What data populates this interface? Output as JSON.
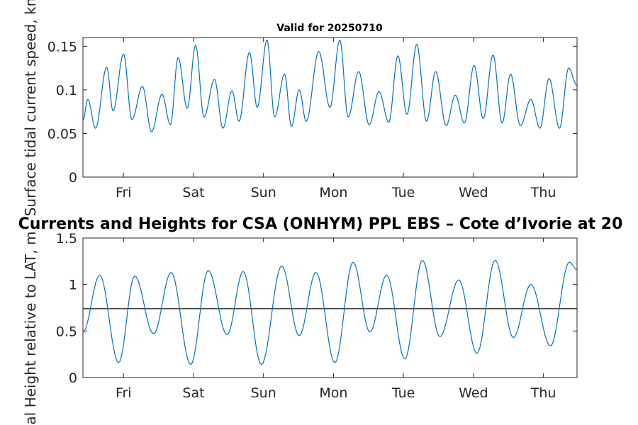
{
  "top_title": "Valid for 20250710",
  "main_title": "Currents and Heights for CSA (ONHYM) PPL EBS  – Cote d’Ivorie at 20",
  "colors": {
    "series": "#0072BD",
    "reference_line": "#000000",
    "axes": "#262626",
    "background": "#ffffff"
  },
  "chart_data": [
    {
      "type": "line",
      "ylabel": "Surface tidal current speed, kn",
      "xlabel": "",
      "day_labels": [
        "Fri",
        "Sat",
        "Sun",
        "Mon",
        "Tue",
        "Wed",
        "Thu"
      ],
      "xlim": [
        0,
        7.06
      ],
      "day_tick_positions": [
        0.58,
        1.58,
        2.58,
        3.58,
        4.58,
        5.58,
        6.58
      ],
      "ylim": [
        0,
        0.16
      ],
      "yticks": [
        0,
        0.05,
        0.1,
        0.15
      ],
      "ytick_labels": [
        "0",
        "0.05",
        "0.1",
        "0.15"
      ],
      "grid": false,
      "series": [
        {
          "x": [
            0.0,
            0.07,
            0.18,
            0.34,
            0.43,
            0.58,
            0.7,
            0.85,
            0.98,
            1.13,
            1.25,
            1.36,
            1.49,
            1.61,
            1.73,
            1.88,
            2.0,
            2.13,
            2.23,
            2.38,
            2.49,
            2.63,
            2.74,
            2.88,
            2.98,
            3.09,
            3.19,
            3.37,
            3.53,
            3.67,
            3.79,
            3.94,
            4.09,
            4.23,
            4.37,
            4.5,
            4.63,
            4.77,
            4.91,
            5.04,
            5.19,
            5.32,
            5.45,
            5.59,
            5.72,
            5.86,
            5.99,
            6.11,
            6.25,
            6.4,
            6.53,
            6.66,
            6.81,
            6.94,
            7.06
          ],
          "values": [
            0.065,
            0.089,
            0.056,
            0.126,
            0.076,
            0.141,
            0.066,
            0.104,
            0.052,
            0.095,
            0.06,
            0.137,
            0.079,
            0.151,
            0.069,
            0.112,
            0.056,
            0.099,
            0.064,
            0.143,
            0.08,
            0.157,
            0.069,
            0.118,
            0.058,
            0.1,
            0.064,
            0.144,
            0.08,
            0.157,
            0.069,
            0.121,
            0.06,
            0.098,
            0.063,
            0.139,
            0.072,
            0.152,
            0.064,
            0.121,
            0.059,
            0.094,
            0.062,
            0.128,
            0.067,
            0.14,
            0.062,
            0.118,
            0.059,
            0.089,
            0.056,
            0.113,
            0.056,
            0.125,
            0.105
          ]
        }
      ]
    },
    {
      "type": "line",
      "ylabel": "Tidal Height relative to LAT, m",
      "xlabel": "",
      "day_labels": [
        "Fri",
        "Sat",
        "Sun",
        "Mon",
        "Tue",
        "Wed",
        "Thu"
      ],
      "xlim": [
        0,
        7.06
      ],
      "day_tick_positions": [
        0.58,
        1.58,
        2.58,
        3.58,
        4.58,
        5.58,
        6.58
      ],
      "ylim": [
        0,
        1.5
      ],
      "yticks": [
        0,
        0.5,
        1,
        1.5
      ],
      "ytick_labels": [
        "0",
        "0.5",
        "1",
        "1.5"
      ],
      "grid": false,
      "reference_value": 0.74,
      "series": [
        {
          "x": [
            0.0,
            0.24,
            0.51,
            0.74,
            1.01,
            1.26,
            1.54,
            1.79,
            2.06,
            2.29,
            2.55,
            2.84,
            3.09,
            3.33,
            3.6,
            3.86,
            4.1,
            4.34,
            4.6,
            4.85,
            5.1,
            5.37,
            5.63,
            5.89,
            6.15,
            6.4,
            6.68,
            6.95,
            7.06
          ],
          "values": [
            0.49,
            1.1,
            0.16,
            1.09,
            0.47,
            1.13,
            0.14,
            1.15,
            0.46,
            1.14,
            0.14,
            1.2,
            0.45,
            1.13,
            0.16,
            1.24,
            0.49,
            1.1,
            0.2,
            1.26,
            0.44,
            1.05,
            0.26,
            1.26,
            0.43,
            1.0,
            0.34,
            1.24,
            1.16
          ]
        }
      ]
    }
  ]
}
